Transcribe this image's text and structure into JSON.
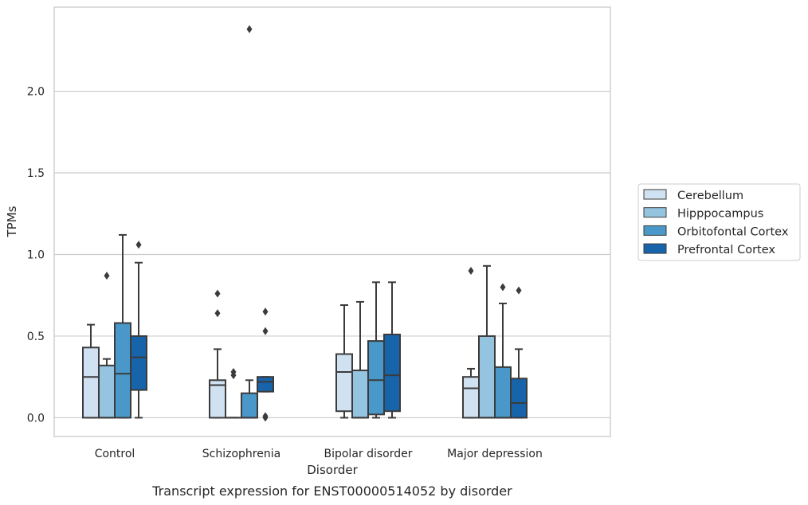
{
  "chart_data": {
    "type": "box",
    "caption": "Transcript expression for ENST00000514052 by disorder",
    "xlabel": "Disorder",
    "ylabel": "TPMs",
    "ylim": [
      -0.115,
      2.515
    ],
    "yticks": [
      0.0,
      0.5,
      1.0,
      1.5,
      2.0
    ],
    "ytick_labels": [
      "0.0",
      "0.5",
      "1.0",
      "1.5",
      "2.0"
    ],
    "grid": "horizontal",
    "legend_position": "right",
    "categories": [
      "Control",
      "Schizophrenia",
      "Bipolar disorder",
      "Major depression"
    ],
    "series": [
      {
        "name": "Cerebellum",
        "color": "#d0e1f2",
        "boxes": [
          {
            "whisker_low": 0.0,
            "q1": 0.0,
            "median": 0.25,
            "q3": 0.43,
            "whisker_high": 0.57,
            "outliers": []
          },
          {
            "whisker_low": 0.0,
            "q1": 0.0,
            "median": 0.2,
            "q3": 0.23,
            "whisker_high": 0.42,
            "outliers": [
              0.76,
              0.64
            ]
          },
          {
            "whisker_low": 0.0,
            "q1": 0.04,
            "median": 0.28,
            "q3": 0.39,
            "whisker_high": 0.69,
            "outliers": []
          },
          {
            "whisker_low": 0.0,
            "q1": 0.0,
            "median": 0.18,
            "q3": 0.25,
            "whisker_high": 0.3,
            "outliers": [
              0.9
            ]
          }
        ]
      },
      {
        "name": "Hipppocampus",
        "color": "#94c4df",
        "boxes": [
          {
            "whisker_low": 0.0,
            "q1": 0.0,
            "median": 0.0,
            "q3": 0.32,
            "whisker_high": 0.36,
            "outliers": [
              0.87
            ]
          },
          {
            "whisker_low": 0.0,
            "q1": 0.0,
            "median": 0.0,
            "q3": 0.0,
            "whisker_high": 0.0,
            "outliers": [
              0.28,
              0.26
            ]
          },
          {
            "whisker_low": 0.0,
            "q1": 0.0,
            "median": 0.0,
            "q3": 0.29,
            "whisker_high": 0.71,
            "outliers": []
          },
          {
            "whisker_low": 0.0,
            "q1": 0.0,
            "median": 0.0,
            "q3": 0.5,
            "whisker_high": 0.93,
            "outliers": []
          }
        ]
      },
      {
        "name": "Orbitofontal Cortex",
        "color": "#4a98c9",
        "boxes": [
          {
            "whisker_low": 0.0,
            "q1": 0.0,
            "median": 0.27,
            "q3": 0.58,
            "whisker_high": 1.12,
            "outliers": []
          },
          {
            "whisker_low": 0.0,
            "q1": 0.0,
            "median": 0.0,
            "q3": 0.15,
            "whisker_high": 0.23,
            "outliers": [
              2.38
            ]
          },
          {
            "whisker_low": 0.0,
            "q1": 0.02,
            "median": 0.23,
            "q3": 0.47,
            "whisker_high": 0.83,
            "outliers": []
          },
          {
            "whisker_low": 0.0,
            "q1": 0.0,
            "median": 0.0,
            "q3": 0.31,
            "whisker_high": 0.7,
            "outliers": [
              0.8
            ]
          }
        ]
      },
      {
        "name": "Prefrontal Cortex",
        "color": "#1764ab",
        "boxes": [
          {
            "whisker_low": 0.0,
            "q1": 0.17,
            "median": 0.37,
            "q3": 0.5,
            "whisker_high": 0.95,
            "outliers": [
              1.06
            ]
          },
          {
            "whisker_low": 0.16,
            "q1": 0.16,
            "median": 0.22,
            "q3": 0.25,
            "whisker_high": 0.25,
            "outliers": [
              0.65,
              0.53,
              0.0,
              0.01
            ]
          },
          {
            "whisker_low": 0.0,
            "q1": 0.04,
            "median": 0.26,
            "q3": 0.51,
            "whisker_high": 0.83,
            "outliers": []
          },
          {
            "whisker_low": 0.0,
            "q1": 0.0,
            "median": 0.09,
            "q3": 0.24,
            "whisker_high": 0.42,
            "outliers": [
              0.78
            ]
          }
        ]
      }
    ]
  }
}
